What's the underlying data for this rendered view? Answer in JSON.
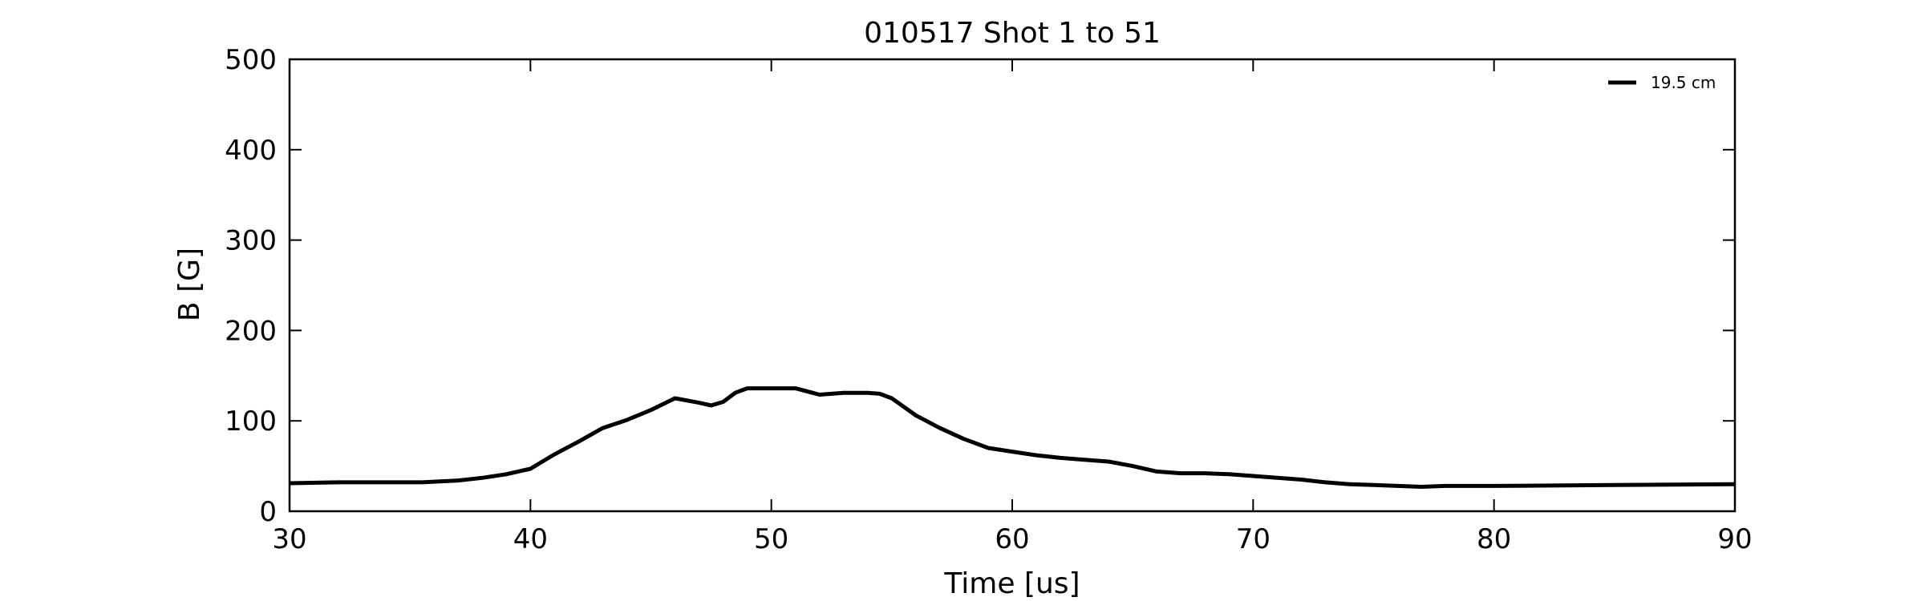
{
  "chart_data": {
    "type": "line",
    "title": "010517 Shot 1 to 51",
    "xlabel": "Time [us]",
    "ylabel": "B [G]",
    "xlim": [
      30,
      90
    ],
    "ylim": [
      0,
      500
    ],
    "xticks": [
      30,
      40,
      50,
      60,
      70,
      80,
      90
    ],
    "yticks": [
      0,
      100,
      200,
      300,
      400,
      500
    ],
    "grid": false,
    "legend_position": "top-right",
    "series": [
      {
        "name": "19.5 cm",
        "color": "#000000",
        "x": [
          30,
          32,
          34,
          35.5,
          37,
          38,
          39,
          40,
          41,
          42,
          43,
          44,
          45,
          46,
          47,
          47.5,
          48,
          48.5,
          49,
          50,
          51,
          52,
          53,
          54,
          54.5,
          55,
          56,
          57,
          58,
          59,
          60,
          61,
          62,
          63,
          64,
          65,
          66,
          67,
          68,
          69,
          70,
          71,
          72,
          73,
          74,
          75,
          76,
          77,
          78,
          80,
          85,
          90
        ],
        "y": [
          31,
          32,
          32,
          32,
          34,
          37,
          41,
          47,
          63,
          77,
          92,
          101,
          112,
          125,
          120,
          117,
          121,
          131,
          136,
          136,
          136,
          129,
          131,
          131,
          130,
          125,
          106,
          92,
          80,
          70,
          66,
          62,
          59,
          57,
          55,
          50,
          44,
          42,
          42,
          41,
          39,
          37,
          35,
          32,
          30,
          29,
          28,
          27,
          28,
          28,
          29,
          30
        ]
      }
    ]
  }
}
